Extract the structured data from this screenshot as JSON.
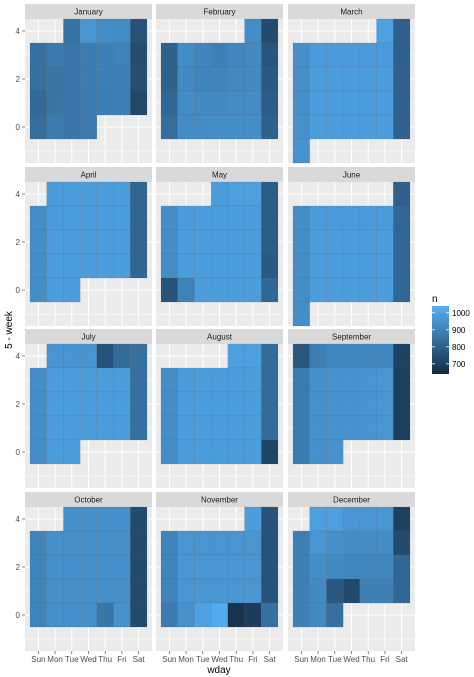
{
  "chart_data": {
    "type": "heatmap",
    "title": "",
    "xlabel": "wday",
    "ylabel": "5 - week",
    "facet_by": "month",
    "weekdays": [
      "Sun",
      "Mon",
      "Tue",
      "Wed",
      "Thu",
      "Fri",
      "Sat"
    ],
    "ylim": [
      -1.5,
      4.5
    ],
    "y_ticks": [
      "0",
      "2",
      "4"
    ],
    "y_tick_values": [
      0,
      2,
      4
    ],
    "legend": {
      "title": "n",
      "placement": "right",
      "range": [
        640,
        1040
      ],
      "ticks": [
        "700",
        "800",
        "900",
        "1000"
      ],
      "tick_values": [
        700,
        800,
        900,
        1000
      ],
      "low_color": "#132B43",
      "high_color": "#56B1F7"
    },
    "panel_background": "#EBEBEB",
    "strip_background": "#D9D9D9",
    "grid": true,
    "months": [
      {
        "name": "January",
        "rows": [
          {
            "y": 4,
            "values": [
              null,
              null,
              855,
              960,
              935,
              930,
              760
            ]
          },
          {
            "y": 3,
            "values": [
              850,
              875,
              870,
              885,
              895,
              900,
              740
            ]
          },
          {
            "y": 2,
            "values": [
              845,
              860,
              870,
              885,
              895,
              895,
              745
            ]
          },
          {
            "y": 1,
            "values": [
              825,
              865,
              870,
              880,
              890,
              895,
              725
            ]
          },
          {
            "y": 0,
            "values": [
              840,
              880,
              870,
              880,
              null,
              null,
              null
            ]
          }
        ]
      },
      {
        "name": "February",
        "rows": [
          {
            "y": 4,
            "values": [
              null,
              null,
              null,
              null,
              null,
              935,
              735
            ]
          },
          {
            "y": 3,
            "values": [
              800,
              930,
              910,
              895,
              915,
              925,
              765
            ]
          },
          {
            "y": 2,
            "values": [
              800,
              925,
              905,
              905,
              920,
              925,
              780
            ]
          },
          {
            "y": 1,
            "values": [
              820,
              930,
              925,
              925,
              930,
              930,
              790
            ]
          },
          {
            "y": 0,
            "values": [
              840,
              930,
              930,
              935,
              935,
              935,
              800
            ]
          }
        ]
      },
      {
        "name": "March",
        "rows": [
          {
            "y": 4,
            "values": [
              null,
              null,
              null,
              null,
              null,
              995,
              800
            ]
          },
          {
            "y": 3,
            "values": [
              940,
              975,
              975,
              975,
              975,
              975,
              800
            ]
          },
          {
            "y": 2,
            "values": [
              940,
              980,
              980,
              980,
              980,
              980,
              805
            ]
          },
          {
            "y": 1,
            "values": [
              940,
              980,
              980,
              980,
              980,
              980,
              805
            ]
          },
          {
            "y": 0,
            "values": [
              945,
              980,
              980,
              980,
              980,
              980,
              805
            ]
          },
          {
            "y": -1,
            "values": [
              950,
              null,
              null,
              null,
              null,
              null,
              null
            ]
          }
        ]
      },
      {
        "name": "April",
        "rows": [
          {
            "y": 4,
            "values": [
              null,
              975,
              980,
              980,
              980,
              980,
              815
            ]
          },
          {
            "y": 3,
            "values": [
              935,
              975,
              980,
              980,
              980,
              980,
              815
            ]
          },
          {
            "y": 2,
            "values": [
              935,
              980,
              980,
              980,
              980,
              980,
              815
            ]
          },
          {
            "y": 1,
            "values": [
              935,
              980,
              980,
              980,
              980,
              980,
              815
            ]
          },
          {
            "y": 0,
            "values": [
              935,
              980,
              980,
              null,
              null,
              null,
              null
            ]
          }
        ]
      },
      {
        "name": "May",
        "rows": [
          {
            "y": 4,
            "values": [
              null,
              null,
              null,
              980,
              985,
              985,
              790
            ]
          },
          {
            "y": 3,
            "values": [
              935,
              975,
              980,
              980,
              980,
              980,
              790
            ]
          },
          {
            "y": 2,
            "values": [
              935,
              980,
              980,
              980,
              980,
              980,
              790
            ]
          },
          {
            "y": 1,
            "values": [
              935,
              980,
              980,
              980,
              980,
              980,
              780
            ]
          },
          {
            "y": 0,
            "values": [
              760,
              900,
              980,
              980,
              980,
              980,
              820
            ]
          }
        ]
      },
      {
        "name": "June",
        "rows": [
          {
            "y": 4,
            "values": [
              null,
              null,
              null,
              null,
              null,
              null,
              800
            ]
          },
          {
            "y": 3,
            "values": [
              935,
              975,
              975,
              975,
              975,
              975,
              820
            ]
          },
          {
            "y": 2,
            "values": [
              935,
              980,
              980,
              980,
              980,
              980,
              820
            ]
          },
          {
            "y": 1,
            "values": [
              935,
              980,
              980,
              980,
              980,
              980,
              820
            ]
          },
          {
            "y": 0,
            "values": [
              935,
              980,
              980,
              980,
              980,
              980,
              820
            ]
          },
          {
            "y": -1,
            "values": [
              935,
              null,
              null,
              null,
              null,
              null,
              null
            ]
          }
        ]
      },
      {
        "name": "July",
        "rows": [
          {
            "y": 4,
            "values": [
              null,
              955,
              955,
              955,
              760,
              830,
              845
            ]
          },
          {
            "y": 3,
            "values": [
              935,
              980,
              980,
              980,
              980,
              980,
              845
            ]
          },
          {
            "y": 2,
            "values": [
              935,
              980,
              980,
              980,
              980,
              980,
              845
            ]
          },
          {
            "y": 1,
            "values": [
              935,
              980,
              980,
              980,
              980,
              980,
              845
            ]
          },
          {
            "y": 0,
            "values": [
              935,
              980,
              980,
              null,
              null,
              null,
              null
            ]
          }
        ]
      },
      {
        "name": "August",
        "rows": [
          {
            "y": 4,
            "values": [
              null,
              null,
              null,
              null,
              985,
              985,
              830
            ]
          },
          {
            "y": 3,
            "values": [
              935,
              975,
              980,
              980,
              980,
              980,
              830
            ]
          },
          {
            "y": 2,
            "values": [
              935,
              980,
              980,
              980,
              980,
              980,
              830
            ]
          },
          {
            "y": 1,
            "values": [
              935,
              980,
              980,
              980,
              980,
              980,
              830
            ]
          },
          {
            "y": 0,
            "values": [
              935,
              980,
              980,
              980,
              980,
              980,
              720
            ]
          }
        ]
      },
      {
        "name": "September",
        "rows": [
          {
            "y": 4,
            "values": [
              770,
              890,
              915,
              915,
              915,
              915,
              710
            ]
          },
          {
            "y": 3,
            "values": [
              880,
              940,
              950,
              950,
              955,
              960,
              700
            ]
          },
          {
            "y": 2,
            "values": [
              880,
              945,
              950,
              950,
              955,
              960,
              700
            ]
          },
          {
            "y": 1,
            "values": [
              880,
              945,
              950,
              950,
              955,
              960,
              700
            ]
          },
          {
            "y": 0,
            "values": [
              880,
              945,
              950,
              null,
              null,
              null,
              null
            ]
          }
        ]
      },
      {
        "name": "October",
        "rows": [
          {
            "y": 4,
            "values": [
              null,
              null,
              940,
              940,
              940,
              940,
              735
            ]
          },
          {
            "y": 3,
            "values": [
              905,
              940,
              940,
              940,
              940,
              940,
              735
            ]
          },
          {
            "y": 2,
            "values": [
              905,
              940,
              940,
              940,
              940,
              940,
              735
            ]
          },
          {
            "y": 1,
            "values": [
              905,
              940,
              940,
              940,
              940,
              940,
              735
            ]
          },
          {
            "y": 0,
            "values": [
              905,
              940,
              940,
              940,
              865,
              945,
              735
            ]
          }
        ]
      },
      {
        "name": "November",
        "rows": [
          {
            "y": 4,
            "values": [
              null,
              null,
              null,
              null,
              null,
              980,
              760
            ]
          },
          {
            "y": 3,
            "values": [
              905,
              955,
              955,
              955,
              955,
              955,
              760
            ]
          },
          {
            "y": 2,
            "values": [
              905,
              960,
              960,
              960,
              960,
              960,
              760
            ]
          },
          {
            "y": 1,
            "values": [
              905,
              960,
              960,
              960,
              960,
              960,
              760
            ]
          },
          {
            "y": 0,
            "values": [
              880,
              945,
              995,
              1020,
              665,
              690,
              850
            ]
          }
        ]
      },
      {
        "name": "December",
        "rows": [
          {
            "y": 4,
            "values": [
              null,
              985,
              985,
              960,
              960,
              960,
              705
            ]
          },
          {
            "y": 3,
            "values": [
              895,
              955,
              940,
              930,
              930,
              930,
              735
            ]
          },
          {
            "y": 2,
            "values": [
              895,
              935,
              925,
              915,
              915,
              915,
              820
            ]
          },
          {
            "y": 1,
            "values": [
              895,
              925,
              775,
              730,
              895,
              895,
              820
            ]
          },
          {
            "y": 0,
            "values": [
              895,
              925,
              845,
              null,
              null,
              null,
              null
            ]
          }
        ]
      }
    ]
  }
}
